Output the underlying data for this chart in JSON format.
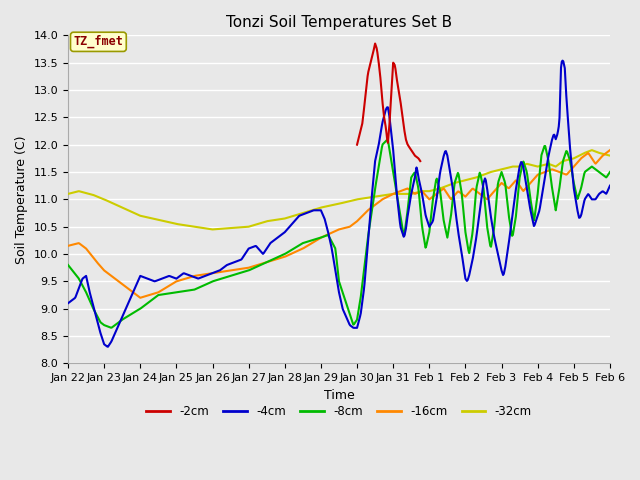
{
  "title": "Tonzi Soil Temperatures Set B",
  "xlabel": "Time",
  "ylabel": "Soil Temperature (C)",
  "ylim": [
    8.0,
    14.0
  ],
  "yticks": [
    8.0,
    8.5,
    9.0,
    9.5,
    10.0,
    10.5,
    11.0,
    11.5,
    12.0,
    12.5,
    13.0,
    13.5,
    14.0
  ],
  "background_color": "#e8e8e8",
  "grid_color": "#ffffff",
  "annotation_text": "TZ_fmet",
  "annotation_color": "#8b0000",
  "annotation_bg": "#ffffcc",
  "annotation_border": "#999900",
  "x_labels": [
    "Jan 22",
    "Jan 23",
    "Jan 24",
    "Jan 25",
    "Jan 26",
    "Jan 27",
    "Jan 28",
    "Jan 29",
    "Jan 30",
    "Jan 31",
    "Feb 1",
    "Feb 2",
    "Feb 3",
    "Feb 4",
    "Feb 5",
    "Feb 6"
  ],
  "colors": {
    "-2cm": "#cc0000",
    "-4cm": "#0000cc",
    "-8cm": "#00bb00",
    "-16cm": "#ff8800",
    "-32cm": "#cccc00"
  },
  "line_width": 1.5
}
